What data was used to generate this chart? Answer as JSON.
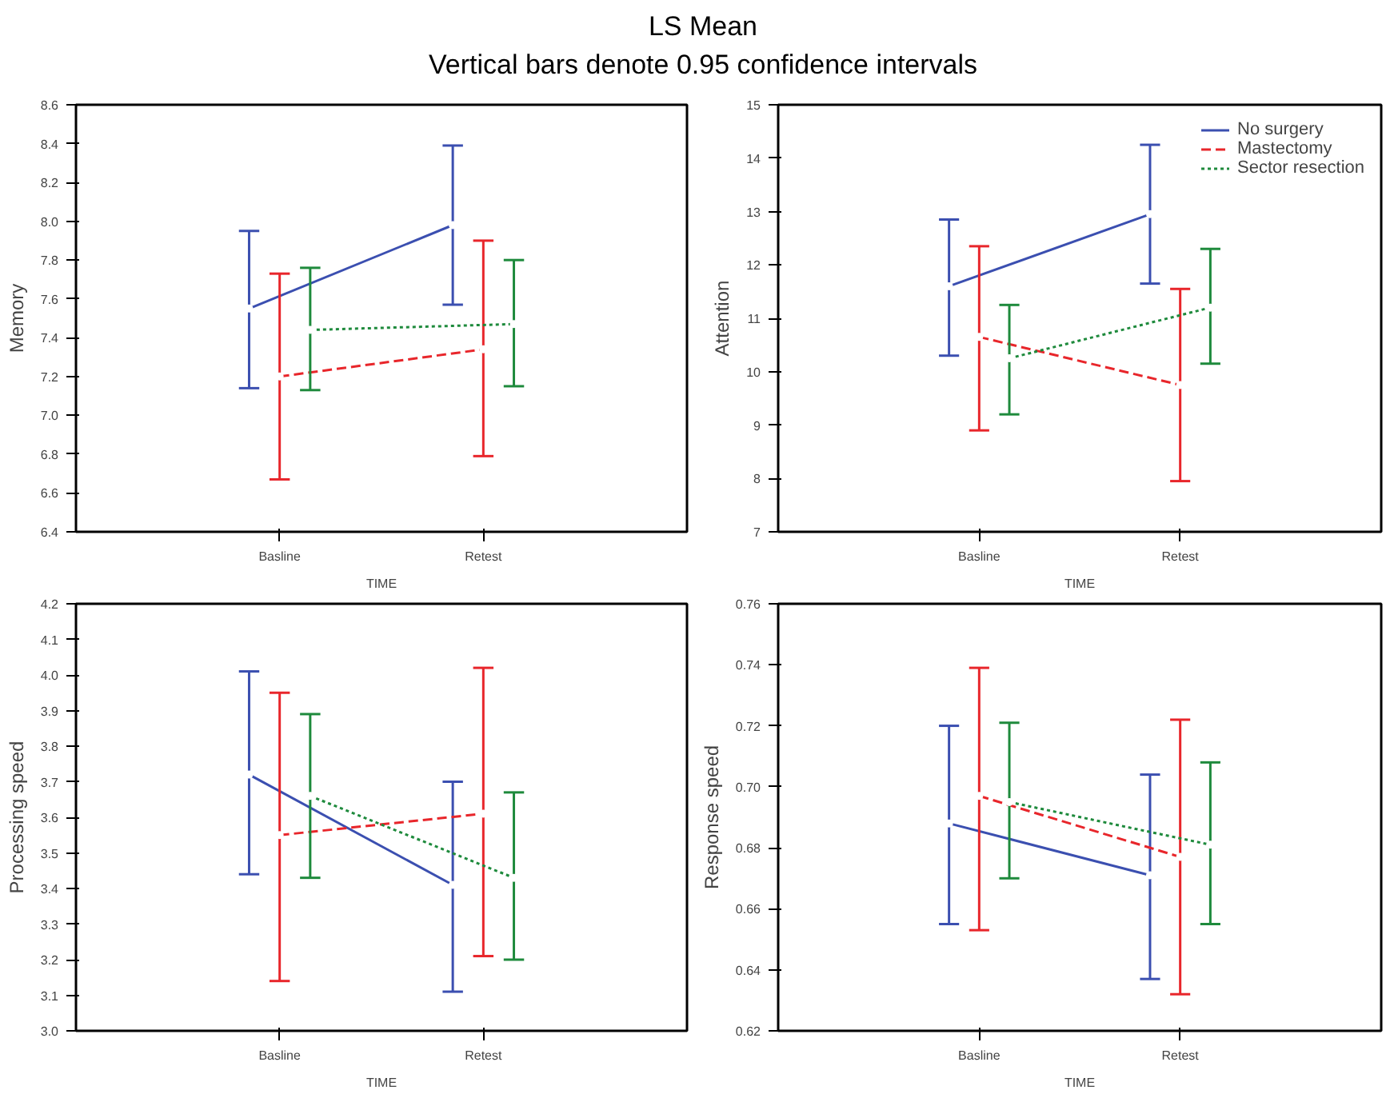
{
  "chart_data": [
    {
      "type": "line",
      "title": "LS Mean",
      "subtitle": "Vertical bars denote 0.95 confidence intervals",
      "xlabel": "TIME",
      "ylabel": "Memory",
      "categories": [
        "Basline",
        "Retest"
      ],
      "ylim": [
        6.4,
        8.6
      ],
      "yticks": [
        6.4,
        6.6,
        6.8,
        {
          "value": 7,
          "label": "7.0"
        },
        7.2,
        7.4,
        7.6,
        7.8,
        {
          "value": 8,
          "label": "8.0"
        },
        8.2,
        8.4,
        8.6
      ],
      "grid": false,
      "legend": false,
      "marker": "circle",
      "series": [
        {
          "color": "#3b4fb0",
          "line_style": "solid",
          "values": [
            7.55,
            7.98
          ],
          "errors": [
            [
              7.14,
              7.95
            ],
            [
              7.57,
              8.39
            ]
          ]
        },
        {
          "color": "#e8262b",
          "line_style": "dashed",
          "values": [
            7.2,
            7.34
          ],
          "errors": [
            [
              6.67,
              7.73
            ],
            [
              6.79,
              7.9
            ]
          ]
        },
        {
          "color": "#1e8a3c",
          "line_style": "dotted",
          "values": [
            7.44,
            7.47
          ],
          "errors": [
            [
              7.13,
              7.76
            ],
            [
              7.15,
              7.8
            ]
          ]
        }
      ]
    },
    {
      "type": "line",
      "xlabel": "TIME",
      "ylabel": "Attention",
      "categories": [
        "Basline",
        "Retest"
      ],
      "ylim": [
        7,
        15
      ],
      "yticks": [
        7,
        8,
        9,
        10,
        11,
        12,
        13,
        14,
        15
      ],
      "grid": false,
      "legend": "top right",
      "marker": "circle",
      "series": [
        {
          "name": "No surgery",
          "color": "#3b4fb0",
          "line_style": "solid",
          "values": [
            11.6,
            12.95
          ],
          "errors": [
            [
              10.3,
              12.85
            ],
            [
              11.65,
              14.25
            ]
          ]
        },
        {
          "name": "Mastectomy",
          "color": "#e8262b",
          "line_style": "dashed",
          "values": [
            10.65,
            9.75
          ],
          "errors": [
            [
              8.9,
              12.35
            ],
            [
              7.95,
              11.55
            ]
          ]
        },
        {
          "name": "Sector resection",
          "color": "#1e8a3c",
          "line_style": "dotted",
          "values": [
            10.25,
            11.2
          ],
          "errors": [
            [
              9.2,
              11.25
            ],
            [
              10.15,
              12.3
            ]
          ]
        }
      ]
    },
    {
      "type": "line",
      "xlabel": "TIME",
      "ylabel": "Processing speed",
      "categories": [
        "Basline",
        "Retest"
      ],
      "ylim": [
        3.0,
        4.2
      ],
      "yticks": [
        {
          "value": 3,
          "label": "3.0"
        },
        3.1,
        3.2,
        3.3,
        3.4,
        3.5,
        3.6,
        3.7,
        3.8,
        3.9,
        {
          "value": 4,
          "label": "4.0"
        },
        4.1,
        4.2
      ],
      "grid": false,
      "legend": false,
      "marker": "circle",
      "series": [
        {
          "color": "#3b4fb0",
          "line_style": "solid",
          "values": [
            3.72,
            3.41
          ],
          "errors": [
            [
              3.44,
              4.01
            ],
            [
              3.11,
              3.7
            ]
          ]
        },
        {
          "color": "#e8262b",
          "line_style": "dashed",
          "values": [
            3.55,
            3.61
          ],
          "errors": [
            [
              3.14,
              3.95
            ],
            [
              3.21,
              4.02
            ]
          ]
        },
        {
          "color": "#1e8a3c",
          "line_style": "dotted",
          "values": [
            3.66,
            3.43
          ],
          "errors": [
            [
              3.43,
              3.89
            ],
            [
              3.2,
              3.67
            ]
          ]
        }
      ]
    },
    {
      "type": "line",
      "xlabel": "TIME",
      "ylabel": "Response speed",
      "categories": [
        "Basline",
        "Retest"
      ],
      "ylim": [
        0.62,
        0.76
      ],
      "yticks": [
        0.62,
        0.64,
        0.66,
        0.68,
        {
          "value": 0.7,
          "label": "0.70"
        },
        0.72,
        0.74,
        0.76
      ],
      "grid": false,
      "legend": false,
      "marker": "circle",
      "series": [
        {
          "color": "#3b4fb0",
          "line_style": "solid",
          "values": [
            0.688,
            0.671
          ],
          "errors": [
            [
              0.655,
              0.72
            ],
            [
              0.637,
              0.704
            ]
          ]
        },
        {
          "color": "#e8262b",
          "line_style": "dashed",
          "values": [
            0.697,
            0.677
          ],
          "errors": [
            [
              0.653,
              0.739
            ],
            [
              0.632,
              0.722
            ]
          ]
        },
        {
          "color": "#1e8a3c",
          "line_style": "dotted",
          "values": [
            0.695,
            0.681
          ],
          "errors": [
            [
              0.67,
              0.721
            ],
            [
              0.655,
              0.708
            ]
          ]
        }
      ]
    }
  ]
}
